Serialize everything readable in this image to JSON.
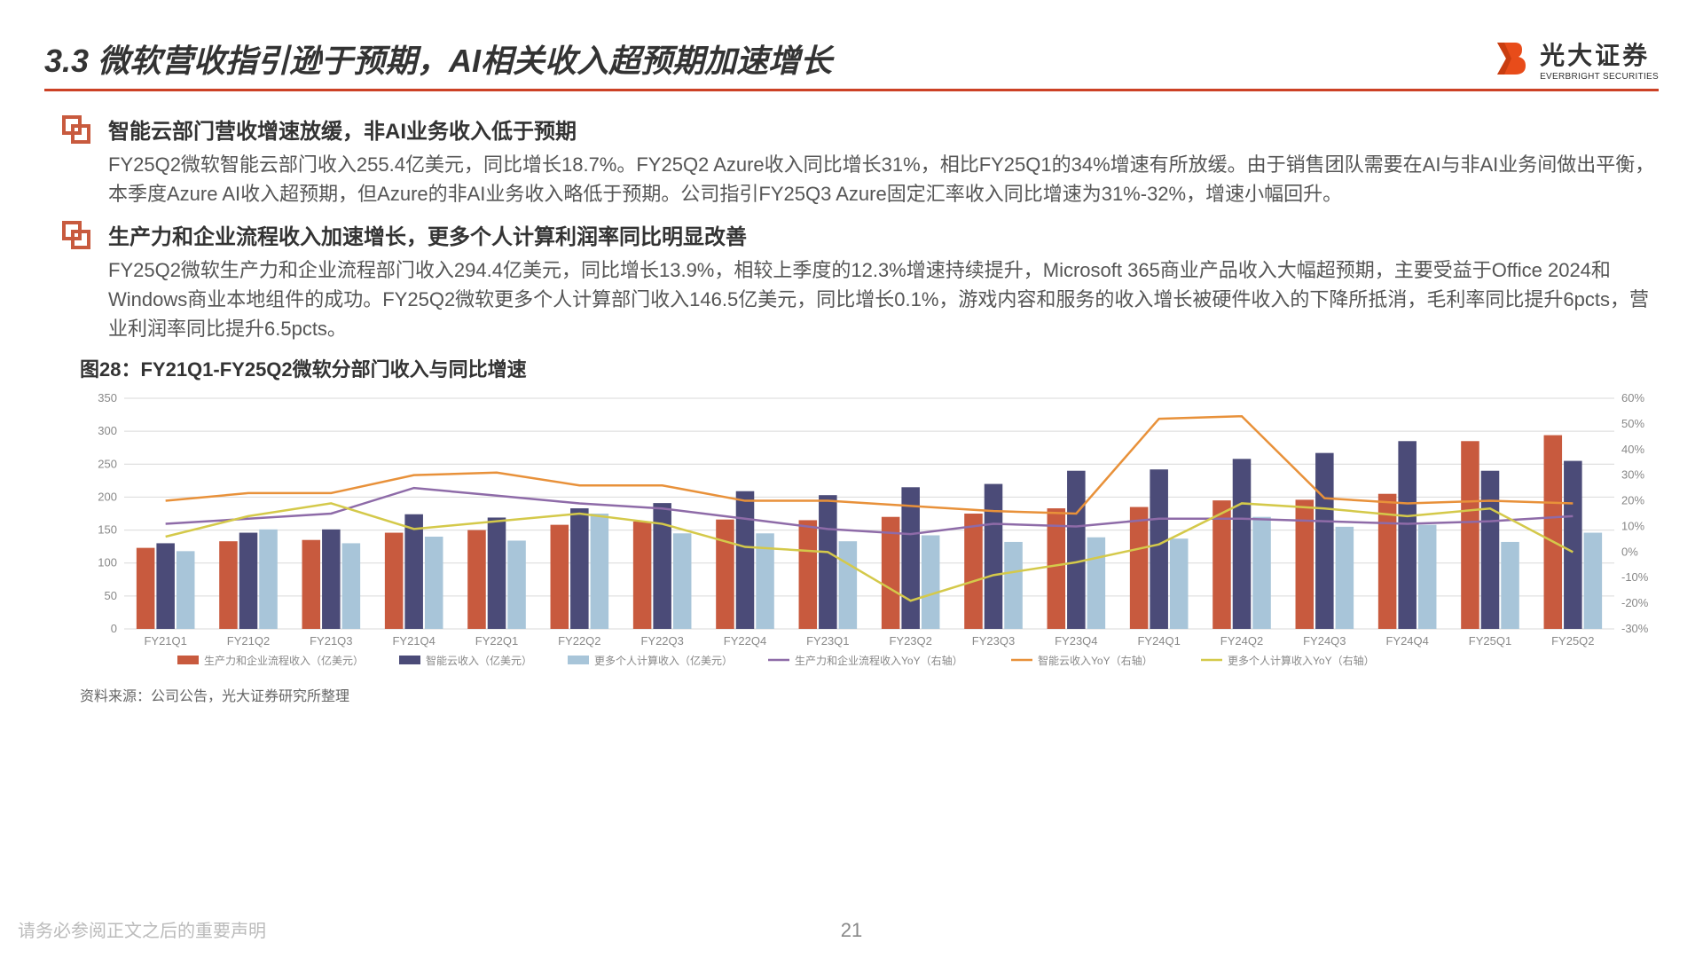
{
  "header": {
    "title": "3.3 微软营收指引逊于预期，AI相关收入超预期加速增长",
    "logo_cn": "光大证券",
    "logo_en": "EVERBRIGHT SECURITIES"
  },
  "bullets": [
    {
      "title": "智能云部门营收增速放缓，非AI业务收入低于预期",
      "text": "FY25Q2微软智能云部门收入255.4亿美元，同比增长18.7%。FY25Q2 Azure收入同比增长31%，相比FY25Q1的34%增速有所放缓。由于销售团队需要在AI与非AI业务间做出平衡，本季度Azure AI收入超预期，但Azure的非AI业务收入略低于预期。公司指引FY25Q3 Azure固定汇率收入同比增速为31%-32%，增速小幅回升。"
    },
    {
      "title": "生产力和企业流程收入加速增长，更多个人计算利润率同比明显改善",
      "text": "FY25Q2微软生产力和企业流程部门收入294.4亿美元，同比增长13.9%，相较上季度的12.3%增速持续提升，Microsoft 365商业产品收入大幅超预期，主要受益于Office 2024和Windows商业本地组件的成功。FY25Q2微软更多个人计算部门收入146.5亿美元，同比增长0.1%，游戏内容和服务的收入增长被硬件收入的下降所抵消，毛利率同比提升6pcts，营业利润率同比提升6.5pcts。"
    }
  ],
  "chart": {
    "title": "图28：FY21Q1-FY25Q2微软分部门收入与同比增速",
    "source": "资料来源：公司公告，光大证券研究所整理",
    "categories": [
      "FY21Q1",
      "FY21Q2",
      "FY21Q3",
      "FY21Q4",
      "FY22Q1",
      "FY22Q2",
      "FY22Q3",
      "FY22Q4",
      "FY23Q1",
      "FY23Q2",
      "FY23Q3",
      "FY23Q4",
      "FY24Q1",
      "FY24Q2",
      "FY24Q3",
      "FY24Q4",
      "FY25Q1",
      "FY25Q2"
    ],
    "y_left": {
      "min": 0,
      "max": 350,
      "step": 50
    },
    "y_right": {
      "min": -30,
      "max": 60,
      "step": 10
    },
    "bar_series": [
      {
        "name": "生产力和企业流程收入（亿美元）",
        "color": "#c85a3e",
        "values": [
          123,
          133,
          135,
          146,
          150,
          158,
          163,
          166,
          165,
          170,
          175,
          183,
          185,
          195,
          196,
          205,
          285,
          294
        ]
      },
      {
        "name": "智能云收入（亿美元）",
        "color": "#4b4b78",
        "values": [
          130,
          146,
          151,
          174,
          169,
          183,
          191,
          209,
          203,
          215,
          220,
          240,
          242,
          258,
          267,
          285,
          240,
          255
        ]
      },
      {
        "name": "更多个人计算收入（亿美元）",
        "color": "#a8c5d9",
        "values": [
          118,
          151,
          130,
          140,
          134,
          175,
          145,
          145,
          133,
          142,
          132,
          139,
          137,
          170,
          155,
          158,
          132,
          146
        ]
      }
    ],
    "line_series": [
      {
        "name": "生产力和企业流程收入YoY（右轴）",
        "color": "#8e6ba8",
        "values": [
          11,
          13,
          15,
          25,
          22,
          19,
          17,
          13,
          9,
          7,
          11,
          10,
          13,
          13,
          12,
          11,
          12,
          14
        ]
      },
      {
        "name": "智能云收入YoY（右轴）",
        "color": "#e8913a",
        "values": [
          20,
          23,
          23,
          30,
          31,
          26,
          26,
          20,
          20,
          18,
          16,
          15,
          52,
          53,
          21,
          19,
          20,
          19
        ]
      },
      {
        "name": "更多个人计算收入YoY（右轴）",
        "color": "#d4c94a",
        "values": [
          6,
          14,
          19,
          9,
          12,
          15,
          11,
          2,
          0,
          -19,
          -9,
          -4,
          3,
          19,
          17,
          14,
          17,
          0
        ]
      }
    ],
    "legend_labels": [
      "生产力和企业流程收入（亿美元）",
      "智能云收入（亿美元）",
      "更多个人计算收入（亿美元）",
      "生产力和企业流程收入YoY（右轴）",
      "智能云收入YoY（右轴）",
      "更多个人计算收入YoY（右轴）"
    ],
    "grid_color": "#d9d9d9",
    "tick_color": "#888",
    "label_fontsize": 13
  },
  "footer": {
    "note": "请务必参阅正文之后的重要声明",
    "page": "21"
  }
}
